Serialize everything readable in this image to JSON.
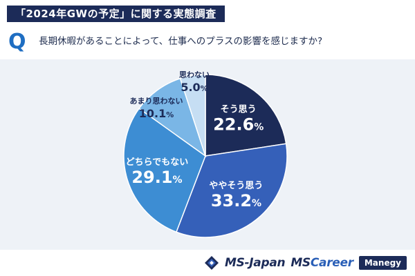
{
  "header": {
    "title": "「2024年GWの予定」に関する実態調査",
    "q_mark": "Q",
    "question": "長期休暇があることによって、仕事へのプラスの影響を感じますか?"
  },
  "chart_data": {
    "type": "pie",
    "title": "",
    "start_angle_deg": 0,
    "direction": "clockwise",
    "slices": [
      {
        "label": "そう思う",
        "value": 22.6,
        "value_text": "22.6",
        "unit": "%",
        "color": "#1c2b58"
      },
      {
        "label": "ややそう思う",
        "value": 33.2,
        "value_text": "33.2",
        "unit": "%",
        "color": "#3560b9"
      },
      {
        "label": "どちらでもない",
        "value": 29.1,
        "value_text": "29.1",
        "unit": "%",
        "color": "#3d8dd3"
      },
      {
        "label": "あまり思わない",
        "value": 10.1,
        "value_text": "10.1",
        "unit": "%",
        "color": "#7ab6e6"
      },
      {
        "label": "思わない",
        "value": 5.0,
        "value_text": "5.0",
        "unit": "%",
        "color": "#c6def3"
      }
    ]
  },
  "footer": {
    "logo_ms_japan": "MS-Japan",
    "logo_mscareer_prefix": "MS",
    "logo_mscareer_suffix": "Career",
    "logo_manegy": "Manegy"
  }
}
